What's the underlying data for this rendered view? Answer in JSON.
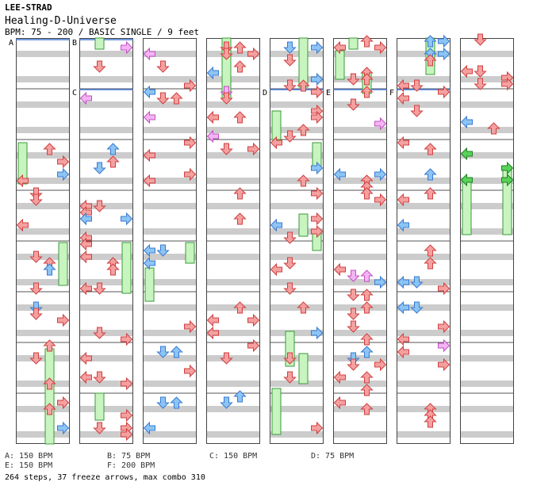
{
  "header": {
    "artist": "LEE-STRAD",
    "title": "Healing-D-Universe",
    "info": "BPM: 75 - 200 / BASIC SINGLE / 9 feet"
  },
  "colors": {
    "red_arrow": "#f4a0a0",
    "blue_arrow": "#8cc4f4",
    "pink_arrow": "#f4b4f4",
    "green_freeze": "#c8f4c0",
    "green_arrow": "#5ad25a",
    "stripe_gray": "#cccccc",
    "bpm_line": "#4a7ad8"
  },
  "sections": [
    "A",
    "B",
    "C",
    "D",
    "E",
    "F"
  ],
  "legend": [
    {
      "label": "A: 150 BPM"
    },
    {
      "label": "B: 75 BPM"
    },
    {
      "label": "C: 150 BPM"
    },
    {
      "label": "D: 75 BPM"
    },
    {
      "label": "E: 150 BPM"
    },
    {
      "label": "F: 200 BPM"
    }
  ],
  "summary": "264 steps, 37 freeze arrows, max combo 310"
}
